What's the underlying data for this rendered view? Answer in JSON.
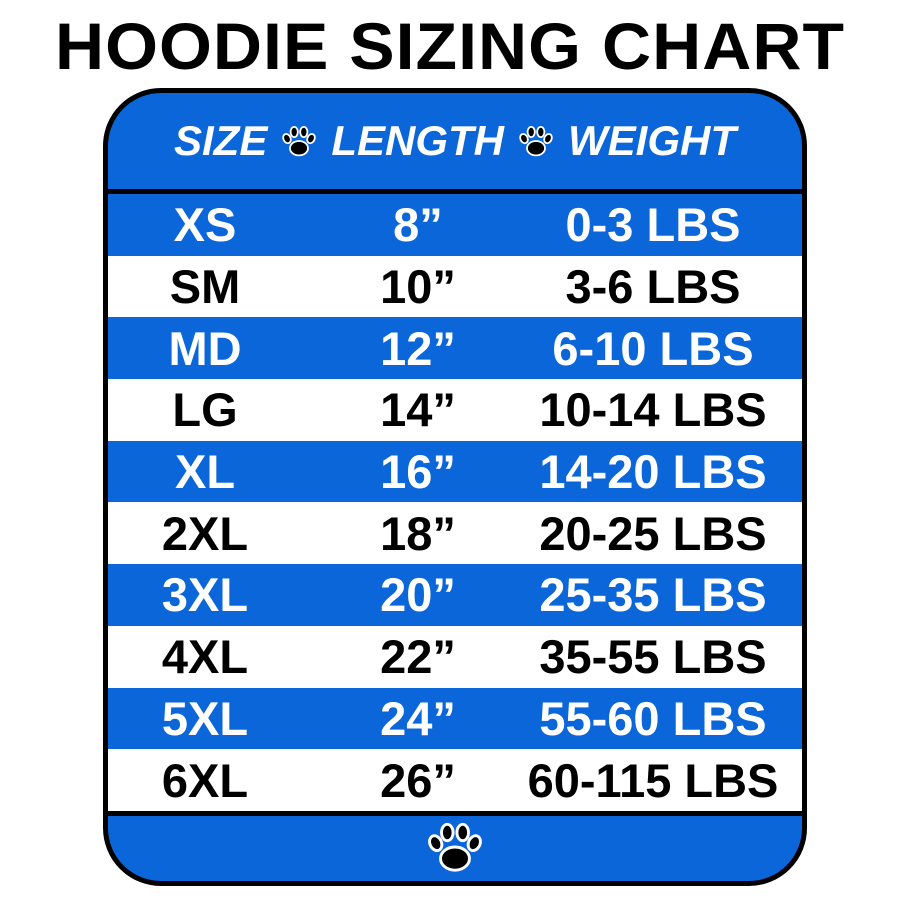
{
  "title": "HOODIE SIZING CHART",
  "colors": {
    "blue": "#0a66d9",
    "black": "#000000",
    "white": "#ffffff"
  },
  "header": {
    "size_label": "SIZE",
    "length_label": "LENGTH",
    "weight_label": "WEIGHT",
    "separator_icon": "paw-print-icon"
  },
  "rows": [
    {
      "size": "XS",
      "length": "8”",
      "weight": "0-3 LBS"
    },
    {
      "size": "SM",
      "length": "10”",
      "weight": "3-6 LBS"
    },
    {
      "size": "MD",
      "length": "12”",
      "weight": "6-10 LBS"
    },
    {
      "size": "LG",
      "length": "14”",
      "weight": "10-14 LBS"
    },
    {
      "size": "XL",
      "length": "16”",
      "weight": "14-20 LBS"
    },
    {
      "size": "2XL",
      "length": "18”",
      "weight": "20-25 LBS"
    },
    {
      "size": "3XL",
      "length": "20”",
      "weight": "25-35 LBS"
    },
    {
      "size": "4XL",
      "length": "22”",
      "weight": "35-55 LBS"
    },
    {
      "size": "5XL",
      "length": "24”",
      "weight": "55-60 LBS"
    },
    {
      "size": "6XL",
      "length": "26”",
      "weight": "60-115 LBS"
    }
  ],
  "footer": {
    "icon": "paw-print-icon"
  }
}
